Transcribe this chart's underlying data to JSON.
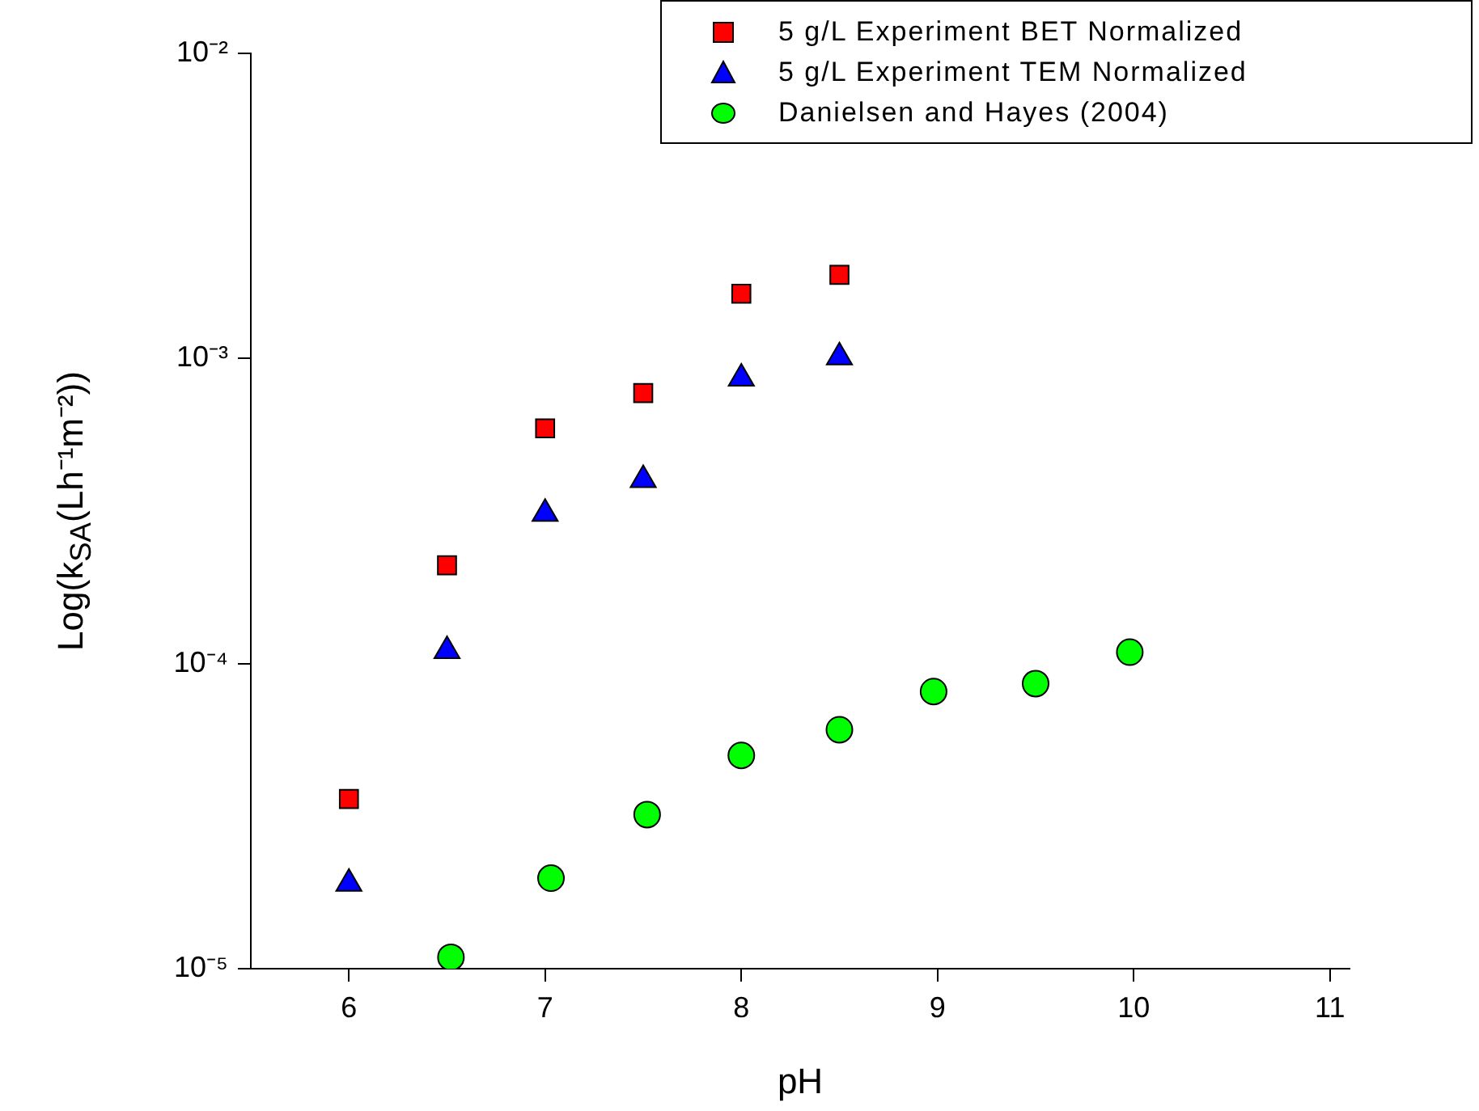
{
  "chart_data": {
    "type": "scatter",
    "xlabel": "pH",
    "ylabel": "Log(k$_{SA}$(Lh⁻¹m⁻²))",
    "log": "y",
    "grid": false,
    "legend": "top right",
    "xlim": [
      5.5,
      11.1
    ],
    "xticks": [
      6,
      7,
      8,
      9,
      10,
      11
    ],
    "ylim": [
      1e-05,
      0.01
    ],
    "yticks": [
      {
        "value": 1e-05,
        "label": "10⁻⁵"
      },
      {
        "value": 0.0001,
        "label": "10⁻⁴"
      },
      {
        "value": 0.001,
        "label": "10⁻³"
      },
      {
        "value": 0.01,
        "label": "10⁻²"
      }
    ],
    "series": [
      {
        "name": "5 g/L Experiment BET Normalized",
        "color": "#ff0000",
        "marker": "square",
        "x": [
          6,
          6.5,
          7,
          7.5,
          8,
          8.5
        ],
        "values": [
          3.6e-05,
          0.00021,
          0.00059,
          0.00077,
          0.00163,
          0.00188
        ]
      },
      {
        "name": "5 g/L Experiment TEM Normalized",
        "color": "#0000ff",
        "marker": "triangle",
        "x": [
          6,
          6.5,
          7,
          7.5,
          8,
          8.5
        ],
        "values": [
          1.9e-05,
          0.00011,
          0.00031,
          0.0004,
          0.00086,
          0.00101
        ]
      },
      {
        "name": "Danielsen and Hayes (2004)",
        "color": "#00ff00",
        "marker": "circle",
        "x": [
          6.52,
          7.03,
          7.52,
          8.0,
          8.5,
          8.98,
          9.5,
          9.98
        ],
        "values": [
          1.09e-05,
          1.98e-05,
          3.2e-05,
          5e-05,
          6.07e-05,
          8.1e-05,
          8.6e-05,
          0.000109
        ]
      }
    ]
  }
}
